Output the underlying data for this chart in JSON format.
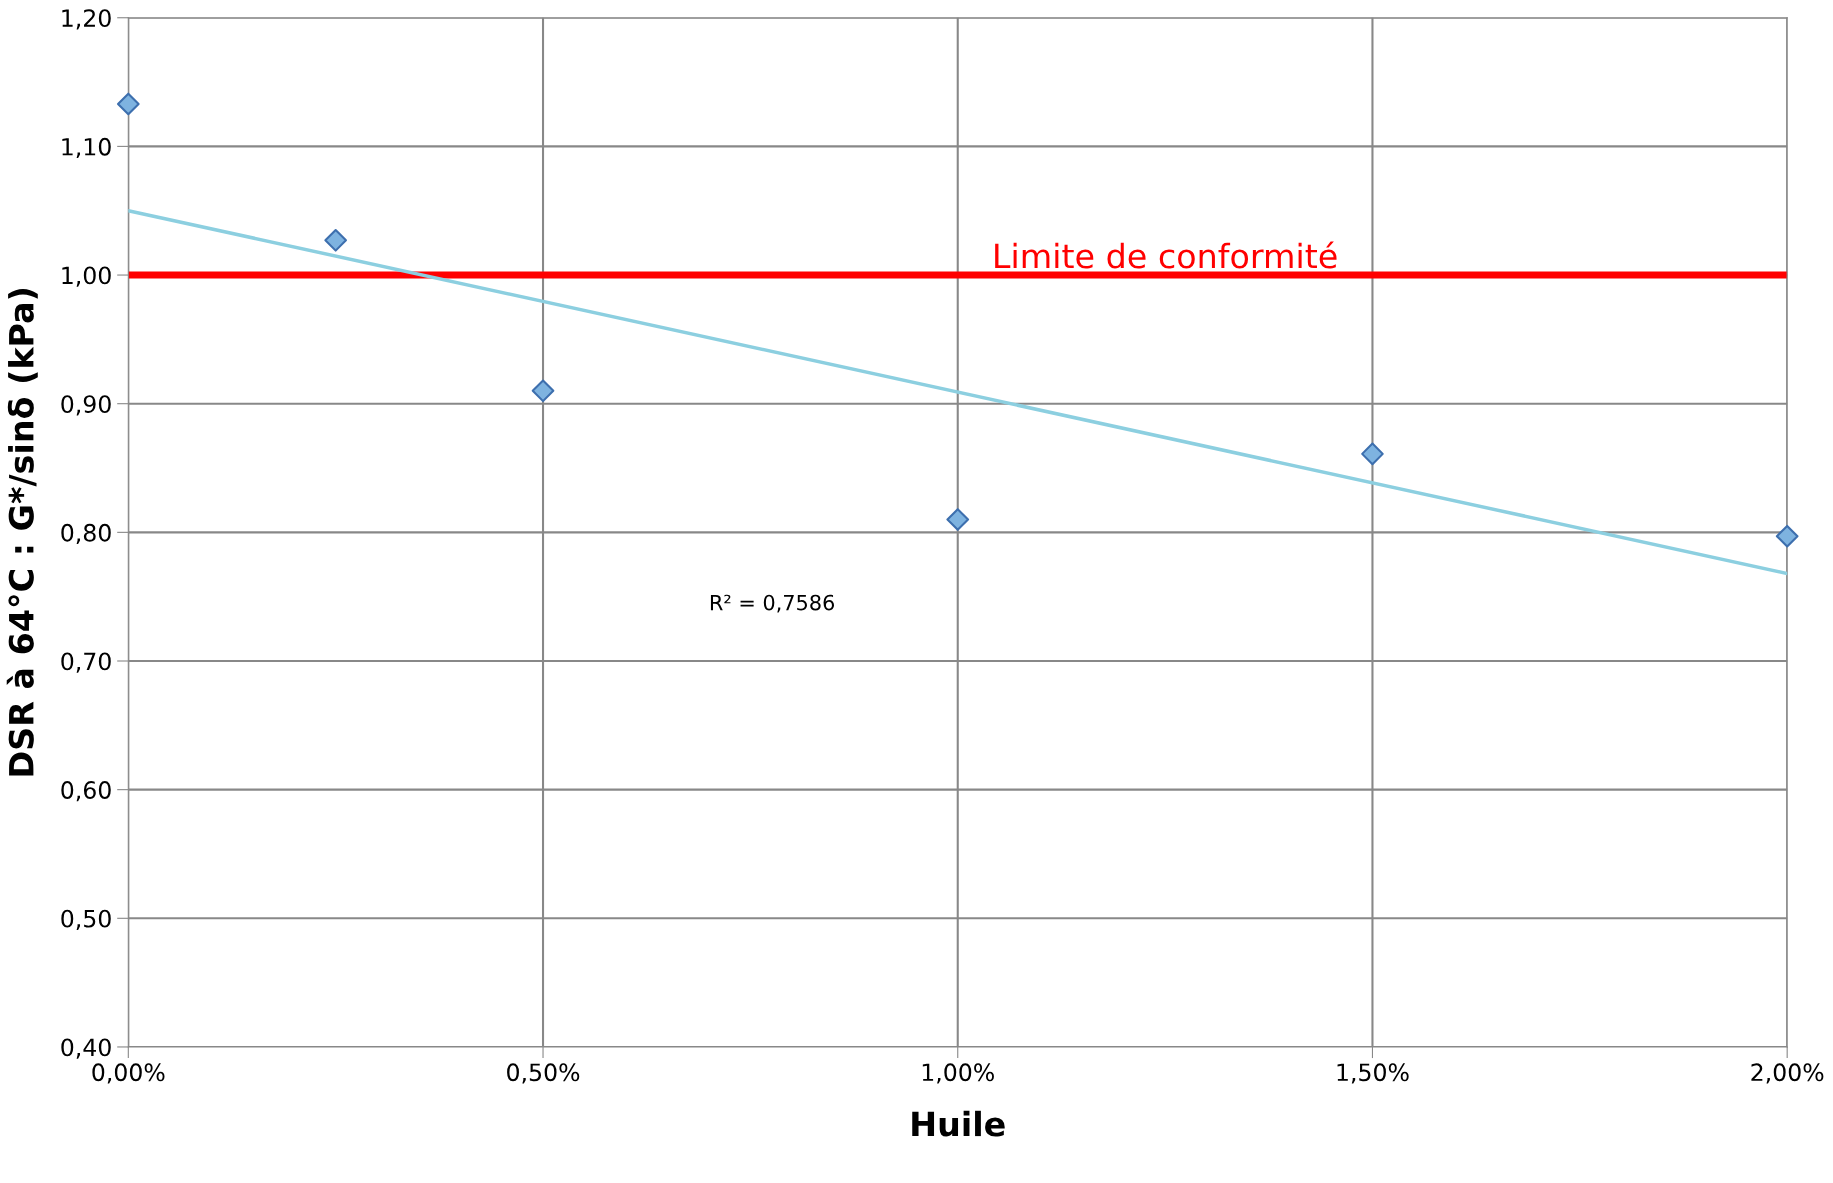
{
  "chart_data": {
    "type": "scatter",
    "xlabel": "Huile",
    "ylabel": "DSR à 64°C : G*/sinδ (kPa)",
    "series": [
      {
        "color": "#7eb3e0",
        "x": [
          0,
          0.25,
          0.5,
          1.0,
          1.5,
          2.0
        ],
        "values": [
          1.133,
          1.027,
          0.91,
          0.81,
          0.861,
          0.797
        ],
        "marker": "diamond"
      },
      {
        "type": "line",
        "color": "#8ccfe0",
        "x": [
          0,
          2.0
        ],
        "values": [
          1.05,
          0.768
        ],
        "line_style": "solid"
      }
    ],
    "xlim": [
      0,
      2.0
    ],
    "xticks": [
      {
        "value": 0,
        "label": "0,00%"
      },
      {
        "value": 0.5,
        "label": "0,50%"
      },
      {
        "value": 1.0,
        "label": "1,00%"
      },
      {
        "value": 1.5,
        "label": "1,50%"
      },
      {
        "value": 2.0,
        "label": "2,00%"
      }
    ],
    "ylim": [
      0.4,
      1.2
    ],
    "yticks": [
      {
        "value": 0.4,
        "label": "0,40"
      },
      {
        "value": 0.5,
        "label": "0,50"
      },
      {
        "value": 0.6,
        "label": "0,60"
      },
      {
        "value": 0.7,
        "label": "0,70"
      },
      {
        "value": 0.8,
        "label": "0,80"
      },
      {
        "value": 0.9,
        "label": "0,90"
      },
      {
        "value": 1.0,
        "label": "1,00"
      },
      {
        "value": 1.1,
        "label": "1,10"
      },
      {
        "value": 1.2,
        "label": "1,20"
      }
    ],
    "ref_lines": [
      {
        "axis": "y",
        "value": 1.0,
        "label": "Limite de conformité",
        "color": "#ff0000"
      }
    ],
    "annotations": [
      "R² = 0,7586"
    ],
    "grid": true,
    "legend": false
  }
}
